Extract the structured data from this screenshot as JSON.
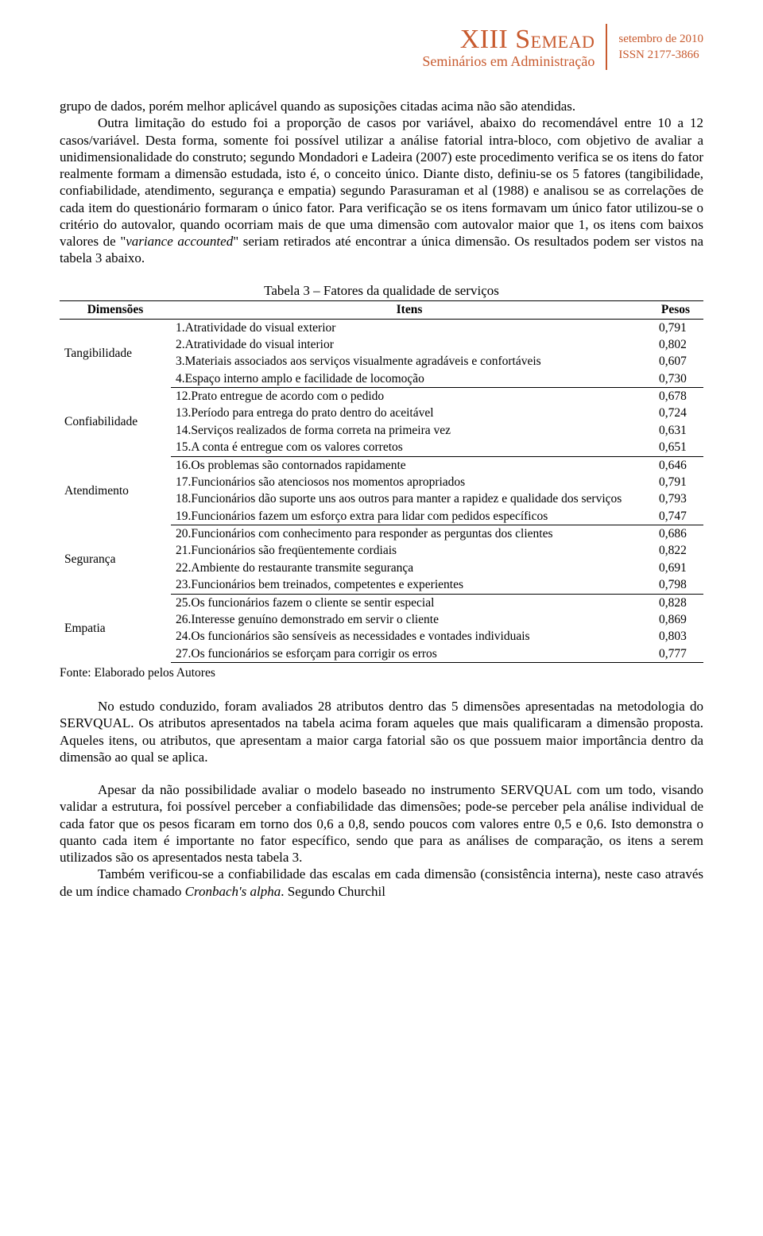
{
  "header": {
    "title_main": "XIII S",
    "title_smallcaps": "EMEAD",
    "subtitle": "Seminários em Administração",
    "date": "setembro de 2010",
    "issn": "ISSN  2177-3866",
    "color": "#c85a2e"
  },
  "p1": "grupo de dados, porém melhor aplicável quando as suposições citadas acima não são atendidas.",
  "p2_a": "Outra limitação do estudo foi a proporção de casos por variável, abaixo do recomendável entre 10 a 12 casos/variável. Desta forma, somente foi possível utilizar a análise fatorial intra-bloco, com objetivo de avaliar a unidimensionalidade do construto; segundo Mondadori e Ladeira (2007) este procedimento verifica se os itens do fator realmente formam a dimensão estudada, isto é, o conceito único. Diante disto, definiu-se os 5 fatores (tangibilidade, confiabilidade, atendimento, segurança e empatia) segundo Parasuraman et al (1988) e analisou se as correlações de cada item do questionário formaram o único fator. Para verificação se os itens formavam um único fator utilizou-se o critério do autovalor, quando ocorriam mais de que uma dimensão com autovalor maior que 1, os itens com baixos valores de \"",
  "p2_italic": "variance accounted",
  "p2_b": "\" seriam retirados até encontrar a única dimensão. Os resultados podem ser vistos na tabela 3 abaixo.",
  "table": {
    "caption": "Tabela 3 – Fatores da qualidade de serviços",
    "headers": {
      "dim": "Dimensões",
      "item": "Itens",
      "peso": "Pesos"
    },
    "groups": [
      {
        "dim": "Tangibilidade",
        "rows": [
          {
            "item": "1.Atratividade do visual exterior",
            "peso": "0,791"
          },
          {
            "item": "2.Atratividade do visual interior",
            "peso": "0,802"
          },
          {
            "item": "3.Materiais associados aos serviços visualmente agradáveis e confortáveis",
            "peso": "0,607"
          },
          {
            "item": "4.Espaço interno amplo e facilidade de locomoção",
            "peso": "0,730"
          }
        ]
      },
      {
        "dim": "Confiabilidade",
        "rows": [
          {
            "item": "12.Prato entregue de acordo com o pedido",
            "peso": "0,678"
          },
          {
            "item": "13.Período para entrega do prato dentro do aceitável",
            "peso": "0,724"
          },
          {
            "item": "14.Serviços realizados de forma correta na primeira vez",
            "peso": "0,631"
          },
          {
            "item": "15.A conta é entregue com os valores corretos",
            "peso": "0,651"
          }
        ]
      },
      {
        "dim": "Atendimento",
        "rows": [
          {
            "item": "16.Os problemas são contornados rapidamente",
            "peso": "0,646"
          },
          {
            "item": "17.Funcionários são atenciosos nos momentos apropriados",
            "peso": "0,791"
          },
          {
            "item": "18.Funcionários dão suporte uns aos outros para manter a rapidez e qualidade dos serviços",
            "peso": "0,793"
          },
          {
            "item": "19.Funcionários fazem um esforço extra para lidar com pedidos específicos",
            "peso": "0,747"
          }
        ]
      },
      {
        "dim": "Segurança",
        "rows": [
          {
            "item": "20.Funcionários com conhecimento para responder as perguntas dos clientes",
            "peso": "0,686"
          },
          {
            "item": "21.Funcionários são freqüentemente cordiais",
            "peso": "0,822"
          },
          {
            "item": "22.Ambiente do restaurante transmite segurança",
            "peso": "0,691"
          },
          {
            "item": "23.Funcionários bem treinados, competentes e experientes",
            "peso": "0,798"
          }
        ]
      },
      {
        "dim": "Empatia",
        "rows": [
          {
            "item": "25.Os funcionários fazem o cliente se sentir especial",
            "peso": "0,828"
          },
          {
            "item": "26.Interesse genuíno demonstrado em servir o cliente",
            "peso": "0,869"
          },
          {
            "item": "24.Os funcionários são sensíveis as necessidades e vontades individuais",
            "peso": "0,803"
          },
          {
            "item": "27.Os funcionários se esforçam para corrigir os erros",
            "peso": "0,777"
          }
        ]
      }
    ],
    "source": "Fonte: Elaborado pelos Autores"
  },
  "p3": "No estudo conduzido, foram avaliados 28 atributos dentro das 5 dimensões apresentadas na metodologia do SERVQUAL. Os atributos apresentados na tabela acima foram aqueles que mais qualificaram a dimensão proposta. Aqueles itens, ou atributos, que apresentam a maior carga fatorial são os que possuem  maior importância dentro da dimensão ao qual se aplica.",
  "p4_a": "Apesar da não possibilidade avaliar o modelo baseado no instrumento SERVQUAL com um todo, visando validar a estrutura, foi possível perceber a confiabilidade das dimensões; pode-se perceber pela análise individual de cada fator que os pesos ficaram em torno dos 0,6 a 0,8, sendo poucos com valores entre 0,5 e 0,6. Isto demonstra o quanto cada item é importante no fator específico, sendo que para as análises de comparação, os itens a serem utilizados são os apresentados nesta tabela 3.",
  "p5_a": "Também verificou-se a confiabilidade das escalas em cada dimensão (consistência interna), neste caso através de um índice chamado ",
  "p5_italic": "Cronbach's alpha",
  "p5_b": ". Segundo Churchil"
}
